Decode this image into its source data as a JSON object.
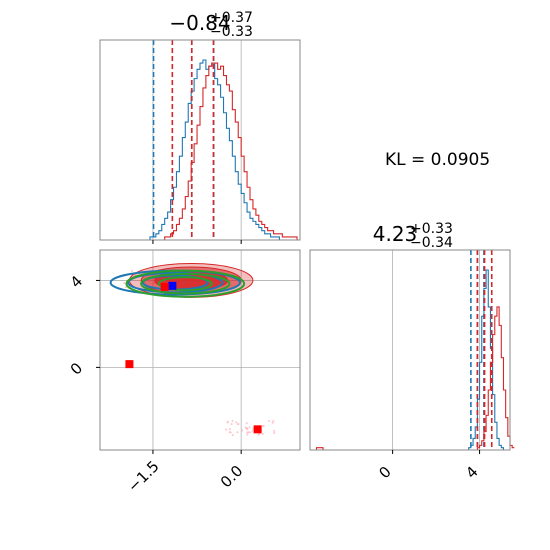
{
  "chart_data": [
    {
      "panel": "marginal-x",
      "type": "histogram",
      "title": {
        "base": "−0.84",
        "sup": "+0.37",
        "sub": "−0.33"
      },
      "xlim": [
        -2.4,
        1.0
      ],
      "series": [
        {
          "color": "#1f77b4",
          "quantiles": [
            -1.49,
            -0.84,
            -0.47
          ],
          "bins": {
            "start": -2.4,
            "width": 0.05,
            "counts": [
              0,
              0,
              0,
              0,
              0,
              0,
              0,
              0,
              0,
              0,
              0,
              0,
              0,
              0,
              0,
              0,
              0,
              1,
              1,
              2,
              3,
              5,
              7,
              9,
              13,
              17,
              22,
              27,
              33,
              38,
              44,
              48,
              52,
              55,
              57,
              58,
              55,
              56,
              57,
              52,
              50,
              46,
              41,
              36,
              32,
              27,
              22,
              18,
              15,
              12,
              9,
              7,
              6,
              5,
              4,
              3,
              2,
              2,
              1,
              1,
              1,
              0,
              0,
              0,
              0,
              0,
              0,
              0
            ]
          }
        },
        {
          "color": "#d62728",
          "quantiles": [
            -1.17,
            -0.84,
            -0.47
          ],
          "bins": {
            "start": -2.4,
            "width": 0.05,
            "counts": [
              0,
              0,
              0,
              0,
              0,
              0,
              0,
              0,
              0,
              0,
              0,
              0,
              0,
              0,
              0,
              0,
              0,
              0,
              0,
              0,
              0,
              0,
              1,
              1,
              2,
              3,
              5,
              7,
              10,
              14,
              19,
              25,
              31,
              37,
              43,
              49,
              53,
              56,
              57,
              57,
              55,
              56,
              53,
              50,
              48,
              42,
              38,
              33,
              27,
              22,
              17,
              13,
              10,
              8,
              6,
              5,
              4,
              3,
              3,
              2,
              2,
              2,
              1,
              1,
              1,
              1,
              1,
              0
            ]
          }
        }
      ]
    },
    {
      "panel": "joint",
      "type": "contour",
      "xlim": [
        -2.4,
        1.0
      ],
      "ylim": [
        -3.8,
        5.4
      ],
      "xticks": [
        -1.5,
        0.0
      ],
      "yticks": [
        0,
        4
      ],
      "xtick_labels": [
        "−1.5",
        "0.0"
      ],
      "ytick_labels": [
        "0",
        "4"
      ],
      "grid": true,
      "series": [
        {
          "color": "#d62728",
          "kind": "filled-contours",
          "center": [
            -0.85,
            4.0
          ],
          "levels": [
            {
              "rx": 0.62,
              "ry": 0.45,
              "opacity": 0.85
            },
            {
              "rx": 0.85,
              "ry": 0.62,
              "opacity": 0.55
            },
            {
              "rx": 1.05,
              "ry": 0.78,
              "opacity": 0.3
            }
          ]
        },
        {
          "color": "#1f77b4",
          "kind": "contours",
          "center": [
            -1.12,
            3.9
          ],
          "levels": [
            {
              "rx": 0.55,
              "ry": 0.32
            },
            {
              "rx": 0.8,
              "ry": 0.45
            },
            {
              "rx": 1.1,
              "ry": 0.55
            }
          ]
        },
        {
          "color": "#2ca02c",
          "kind": "contours",
          "center": [
            -0.95,
            3.85
          ],
          "levels": [
            {
              "rx": 0.45,
              "ry": 0.3
            },
            {
              "rx": 0.75,
              "ry": 0.45
            },
            {
              "rx": 1.0,
              "ry": 0.6
            }
          ]
        }
      ],
      "markers": [
        {
          "color": "#0000ff",
          "x": -1.17,
          "y": 3.75
        },
        {
          "color": "#ff0000",
          "x": -1.3,
          "y": 3.7
        },
        {
          "color": "#ff0000",
          "x": -1.9,
          "y": 0.15
        },
        {
          "color": "#ff0000",
          "x": 0.28,
          "y": -2.85
        }
      ],
      "scatter_clusters": [
        {
          "color": "#ffb6c1",
          "center": [
            0.15,
            -2.8
          ],
          "spread": [
            0.45,
            0.35
          ],
          "n": 40
        },
        {
          "color": "#ffb6c1",
          "center": [
            -1.2,
            4.0
          ],
          "spread": [
            0.8,
            0.45
          ],
          "n": 25
        }
      ]
    },
    {
      "panel": "marginal-y",
      "type": "histogram",
      "title": {
        "base": "4.23",
        "sup": "+0.33",
        "sub": "−0.34"
      },
      "xlim": [
        -3.8,
        5.4
      ],
      "xticks": [
        0,
        4
      ],
      "xtick_labels": [
        "0",
        "4"
      ],
      "series": [
        {
          "color": "#1f77b4",
          "quantiles": [
            3.6,
            3.9,
            4.2
          ],
          "bins": {
            "start": -3.8,
            "width": 0.1,
            "counts": [
              0,
              0,
              0,
              0,
              0,
              0,
              0,
              0,
              0,
              0,
              0,
              0,
              0,
              0,
              0,
              0,
              0,
              0,
              0,
              0,
              0,
              0,
              0,
              0,
              0,
              0,
              0,
              0,
              0,
              0,
              0,
              0,
              0,
              0,
              0,
              0,
              0,
              0,
              0,
              0,
              0,
              0,
              0,
              0,
              0,
              0,
              0,
              0,
              0,
              0,
              0,
              0,
              0,
              0,
              0,
              0,
              0,
              0,
              0,
              0,
              0,
              0,
              0,
              0,
              0,
              0,
              0,
              0,
              0,
              0,
              0,
              0,
              0,
              1,
              2,
              5,
              10,
              22,
              38,
              58,
              70,
              78,
              62,
              44,
              24,
              12,
              5,
              2,
              1,
              0,
              0,
              0
            ]
          }
        },
        {
          "color": "#d62728",
          "quantiles": [
            3.9,
            4.23,
            4.56
          ],
          "bins": {
            "start": -3.8,
            "width": 0.1,
            "counts": [
              0,
              0,
              0,
              1,
              1,
              1,
              0,
              0,
              0,
              0,
              0,
              0,
              0,
              0,
              0,
              0,
              0,
              0,
              0,
              0,
              0,
              0,
              0,
              0,
              0,
              0,
              0,
              0,
              0,
              0,
              0,
              0,
              0,
              0,
              0,
              0,
              0,
              0,
              0,
              0,
              0,
              0,
              0,
              0,
              0,
              0,
              0,
              0,
              0,
              0,
              0,
              0,
              0,
              0,
              0,
              0,
              0,
              0,
              0,
              0,
              0,
              0,
              0,
              0,
              0,
              0,
              0,
              0,
              0,
              0,
              0,
              0,
              0,
              0,
              0,
              0,
              0,
              1,
              2,
              4,
              8,
              15,
              26,
              38,
              50,
              58,
              62,
              54,
              40,
              26,
              14,
              6,
              2,
              1
            ]
          }
        }
      ]
    }
  ],
  "annotation": "KL = 0.0905"
}
